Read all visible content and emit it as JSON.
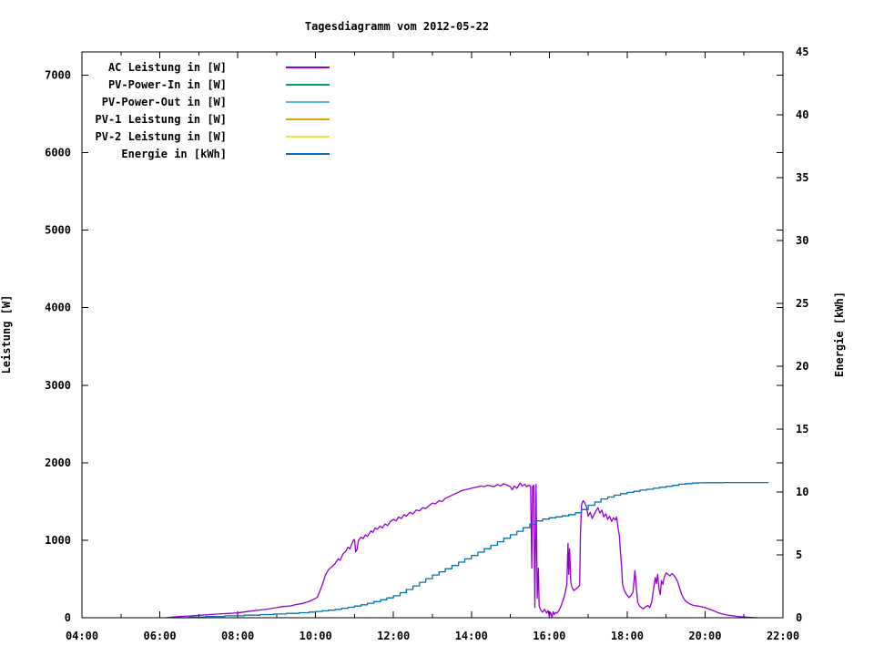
{
  "chart_data": {
    "type": "line",
    "title": "Tagesdiagramm vom 2012-05-22",
    "grid": false,
    "legend_position": "top-left",
    "x_axis": {
      "range": [
        4,
        22
      ],
      "tick_values": [
        4,
        6,
        8,
        10,
        12,
        14,
        16,
        18,
        20,
        22
      ],
      "tick_labels": [
        "04:00",
        "06:00",
        "08:00",
        "10:00",
        "12:00",
        "14:00",
        "16:00",
        "18:00",
        "20:00",
        "22:00"
      ],
      "minor_step": 1
    },
    "y_left": {
      "label": "Leistung [W]",
      "range": [
        0,
        7300
      ],
      "tick_values": [
        0,
        1000,
        2000,
        3000,
        4000,
        5000,
        6000,
        7000
      ],
      "tick_labels": [
        "0",
        "1000",
        "2000",
        "3000",
        "4000",
        "5000",
        "6000",
        "7000"
      ]
    },
    "y_right": {
      "label": "Energie [kWh]",
      "range": [
        0,
        45
      ],
      "tick_values": [
        0,
        5,
        10,
        15,
        20,
        25,
        30,
        35,
        40,
        45
      ],
      "tick_labels": [
        "0",
        "5",
        "10",
        "15",
        "20",
        "25",
        "30",
        "35",
        "40",
        "45"
      ]
    },
    "series": [
      {
        "name": "AC Leistung in [W]",
        "color": "#9400d3",
        "axis": "left",
        "step": false,
        "points": [
          [
            6.17,
            0
          ],
          [
            6.33,
            8
          ],
          [
            6.5,
            15
          ],
          [
            6.75,
            22
          ],
          [
            7.0,
            32
          ],
          [
            7.25,
            40
          ],
          [
            7.5,
            48
          ],
          [
            7.75,
            55
          ],
          [
            8.0,
            62
          ],
          [
            8.25,
            80
          ],
          [
            8.5,
            95
          ],
          [
            8.75,
            110
          ],
          [
            9.0,
            130
          ],
          [
            9.17,
            145
          ],
          [
            9.33,
            150
          ],
          [
            9.5,
            170
          ],
          [
            9.67,
            185
          ],
          [
            9.83,
            210
          ],
          [
            9.92,
            230
          ],
          [
            10.0,
            250
          ],
          [
            10.05,
            270
          ],
          [
            10.1,
            330
          ],
          [
            10.17,
            420
          ],
          [
            10.25,
            550
          ],
          [
            10.33,
            620
          ],
          [
            10.42,
            660
          ],
          [
            10.5,
            700
          ],
          [
            10.58,
            760
          ],
          [
            10.63,
            740
          ],
          [
            10.7,
            820
          ],
          [
            10.78,
            860
          ],
          [
            10.83,
            910
          ],
          [
            10.88,
            890
          ],
          [
            10.93,
            950
          ],
          [
            10.97,
            1000
          ],
          [
            11.0,
            1010
          ],
          [
            11.03,
            850
          ],
          [
            11.07,
            890
          ],
          [
            11.1,
            1000
          ],
          [
            11.17,
            1040
          ],
          [
            11.22,
            1020
          ],
          [
            11.28,
            1070
          ],
          [
            11.33,
            1050
          ],
          [
            11.42,
            1120
          ],
          [
            11.47,
            1100
          ],
          [
            11.53,
            1160
          ],
          [
            11.58,
            1140
          ],
          [
            11.65,
            1180
          ],
          [
            11.72,
            1160
          ],
          [
            11.78,
            1210
          ],
          [
            11.85,
            1190
          ],
          [
            11.92,
            1240
          ],
          [
            12.0,
            1270
          ],
          [
            12.07,
            1250
          ],
          [
            12.13,
            1300
          ],
          [
            12.2,
            1280
          ],
          [
            12.27,
            1330
          ],
          [
            12.33,
            1310
          ],
          [
            12.42,
            1360
          ],
          [
            12.5,
            1340
          ],
          [
            12.58,
            1390
          ],
          [
            12.67,
            1380
          ],
          [
            12.75,
            1420
          ],
          [
            12.83,
            1410
          ],
          [
            12.92,
            1450
          ],
          [
            13.0,
            1480
          ],
          [
            13.08,
            1470
          ],
          [
            13.17,
            1510
          ],
          [
            13.25,
            1500
          ],
          [
            13.33,
            1540
          ],
          [
            13.42,
            1560
          ],
          [
            13.5,
            1580
          ],
          [
            13.58,
            1600
          ],
          [
            13.67,
            1620
          ],
          [
            13.75,
            1640
          ],
          [
            13.83,
            1650
          ],
          [
            13.92,
            1660
          ],
          [
            14.0,
            1670
          ],
          [
            14.08,
            1680
          ],
          [
            14.17,
            1690
          ],
          [
            14.25,
            1700
          ],
          [
            14.33,
            1690
          ],
          [
            14.42,
            1710
          ],
          [
            14.5,
            1700
          ],
          [
            14.58,
            1690
          ],
          [
            14.67,
            1720
          ],
          [
            14.75,
            1700
          ],
          [
            14.83,
            1730
          ],
          [
            14.92,
            1710
          ],
          [
            15.0,
            1690
          ],
          [
            15.05,
            1650
          ],
          [
            15.1,
            1700
          ],
          [
            15.17,
            1670
          ],
          [
            15.25,
            1740
          ],
          [
            15.3,
            1700
          ],
          [
            15.37,
            1720
          ],
          [
            15.42,
            1690
          ],
          [
            15.47,
            1710
          ],
          [
            15.52,
            1700
          ],
          [
            15.55,
            640
          ],
          [
            15.57,
            1690
          ],
          [
            15.6,
            1710
          ],
          [
            15.63,
            130
          ],
          [
            15.66,
            1720
          ],
          [
            15.69,
            250
          ],
          [
            15.72,
            640
          ],
          [
            15.74,
            150
          ],
          [
            15.78,
            100
          ],
          [
            15.83,
            70
          ],
          [
            15.88,
            110
          ],
          [
            15.93,
            60
          ],
          [
            15.97,
            90
          ],
          [
            16.0,
            15
          ],
          [
            16.03,
            70
          ],
          [
            16.07,
            5
          ],
          [
            16.1,
            80
          ],
          [
            16.13,
            40
          ],
          [
            16.17,
            70
          ],
          [
            16.2,
            60
          ],
          [
            16.25,
            95
          ],
          [
            16.3,
            150
          ],
          [
            16.35,
            220
          ],
          [
            16.4,
            300
          ],
          [
            16.45,
            430
          ],
          [
            16.48,
            960
          ],
          [
            16.5,
            560
          ],
          [
            16.52,
            890
          ],
          [
            16.55,
            470
          ],
          [
            16.58,
            400
          ],
          [
            16.63,
            350
          ],
          [
            16.68,
            370
          ],
          [
            16.73,
            390
          ],
          [
            16.78,
            420
          ],
          [
            16.8,
            1100
          ],
          [
            16.83,
            1460
          ],
          [
            16.87,
            1510
          ],
          [
            16.9,
            1490
          ],
          [
            16.95,
            1440
          ],
          [
            17.0,
            1310
          ],
          [
            17.05,
            1360
          ],
          [
            17.1,
            1280
          ],
          [
            17.15,
            1330
          ],
          [
            17.2,
            1380
          ],
          [
            17.25,
            1420
          ],
          [
            17.3,
            1350
          ],
          [
            17.35,
            1390
          ],
          [
            17.4,
            1300
          ],
          [
            17.45,
            1340
          ],
          [
            17.5,
            1270
          ],
          [
            17.55,
            1310
          ],
          [
            17.6,
            1240
          ],
          [
            17.65,
            1290
          ],
          [
            17.7,
            1260
          ],
          [
            17.73,
            1300
          ],
          [
            17.77,
            1150
          ],
          [
            17.8,
            1060
          ],
          [
            17.83,
            830
          ],
          [
            17.86,
            640
          ],
          [
            17.88,
            430
          ],
          [
            17.92,
            360
          ],
          [
            17.97,
            310
          ],
          [
            18.0,
            290
          ],
          [
            18.05,
            260
          ],
          [
            18.1,
            290
          ],
          [
            18.15,
            330
          ],
          [
            18.2,
            610
          ],
          [
            18.23,
            430
          ],
          [
            18.27,
            200
          ],
          [
            18.32,
            150
          ],
          [
            18.37,
            130
          ],
          [
            18.42,
            115
          ],
          [
            18.47,
            140
          ],
          [
            18.53,
            160
          ],
          [
            18.58,
            130
          ],
          [
            18.63,
            200
          ],
          [
            18.68,
            380
          ],
          [
            18.72,
            520
          ],
          [
            18.75,
            440
          ],
          [
            18.78,
            560
          ],
          [
            18.82,
            360
          ],
          [
            18.85,
            300
          ],
          [
            18.88,
            480
          ],
          [
            18.92,
            430
          ],
          [
            18.95,
            520
          ],
          [
            19.0,
            580
          ],
          [
            19.05,
            560
          ],
          [
            19.1,
            540
          ],
          [
            19.15,
            570
          ],
          [
            19.2,
            545
          ],
          [
            19.25,
            510
          ],
          [
            19.3,
            460
          ],
          [
            19.35,
            380
          ],
          [
            19.4,
            300
          ],
          [
            19.45,
            250
          ],
          [
            19.5,
            215
          ],
          [
            19.58,
            185
          ],
          [
            19.67,
            165
          ],
          [
            19.75,
            155
          ],
          [
            19.83,
            150
          ],
          [
            19.92,
            140
          ],
          [
            20.0,
            130
          ],
          [
            20.08,
            115
          ],
          [
            20.17,
            100
          ],
          [
            20.25,
            85
          ],
          [
            20.33,
            65
          ],
          [
            20.42,
            52
          ],
          [
            20.5,
            42
          ],
          [
            20.58,
            34
          ],
          [
            20.67,
            27
          ],
          [
            20.75,
            22
          ],
          [
            20.83,
            17
          ],
          [
            20.92,
            13
          ],
          [
            21.0,
            10
          ],
          [
            21.08,
            7
          ],
          [
            21.17,
            4
          ],
          [
            21.25,
            2
          ],
          [
            21.33,
            0
          ]
        ]
      },
      {
        "name": "PV-Power-In in [W]",
        "color": "#009e73",
        "axis": "left",
        "step": false,
        "points": []
      },
      {
        "name": "PV-Power-Out in [W]",
        "color": "#56b4e9",
        "axis": "left",
        "step": false,
        "points": []
      },
      {
        "name": "PV-1 Leistung in [W]",
        "color": "#e69f00",
        "axis": "left",
        "step": false,
        "points": []
      },
      {
        "name": "PV-2 Leistung in [W]",
        "color": "#f0e442",
        "axis": "left",
        "step": false,
        "points": []
      },
      {
        "name": "Energie in [kWh]",
        "color": "#0072b2",
        "axis": "right",
        "step": true,
        "points": [
          [
            6.33,
            0
          ],
          [
            6.75,
            0.05
          ],
          [
            7.17,
            0.1
          ],
          [
            7.67,
            0.15
          ],
          [
            8.17,
            0.2
          ],
          [
            8.58,
            0.25
          ],
          [
            8.92,
            0.3
          ],
          [
            9.25,
            0.35
          ],
          [
            9.58,
            0.4
          ],
          [
            9.83,
            0.45
          ],
          [
            10.0,
            0.5
          ],
          [
            10.17,
            0.55
          ],
          [
            10.33,
            0.6
          ],
          [
            10.5,
            0.67
          ],
          [
            10.67,
            0.75
          ],
          [
            10.83,
            0.83
          ],
          [
            11.0,
            0.93
          ],
          [
            11.17,
            1.03
          ],
          [
            11.33,
            1.15
          ],
          [
            11.5,
            1.28
          ],
          [
            11.67,
            1.43
          ],
          [
            11.83,
            1.58
          ],
          [
            12.0,
            1.75
          ],
          [
            12.17,
            1.99
          ],
          [
            12.33,
            2.25
          ],
          [
            12.5,
            2.53
          ],
          [
            12.67,
            2.82
          ],
          [
            12.83,
            3.11
          ],
          [
            13.0,
            3.4
          ],
          [
            13.17,
            3.65
          ],
          [
            13.33,
            3.9
          ],
          [
            13.5,
            4.15
          ],
          [
            13.67,
            4.42
          ],
          [
            13.83,
            4.68
          ],
          [
            14.0,
            4.95
          ],
          [
            14.17,
            5.22
          ],
          [
            14.33,
            5.49
          ],
          [
            14.5,
            5.76
          ],
          [
            14.67,
            6.04
          ],
          [
            14.83,
            6.32
          ],
          [
            15.0,
            6.6
          ],
          [
            15.17,
            6.88
          ],
          [
            15.33,
            7.16
          ],
          [
            15.5,
            7.44
          ],
          [
            15.67,
            7.7
          ],
          [
            15.83,
            7.85
          ],
          [
            16.0,
            7.95
          ],
          [
            16.17,
            8.02
          ],
          [
            16.33,
            8.1
          ],
          [
            16.5,
            8.2
          ],
          [
            16.67,
            8.35
          ],
          [
            16.83,
            8.6
          ],
          [
            17.0,
            8.95
          ],
          [
            17.17,
            9.2
          ],
          [
            17.33,
            9.45
          ],
          [
            17.5,
            9.6
          ],
          [
            17.67,
            9.75
          ],
          [
            17.83,
            9.87
          ],
          [
            18.0,
            9.97
          ],
          [
            18.17,
            10.06
          ],
          [
            18.33,
            10.15
          ],
          [
            18.5,
            10.22
          ],
          [
            18.67,
            10.3
          ],
          [
            18.83,
            10.38
          ],
          [
            19.0,
            10.45
          ],
          [
            19.17,
            10.53
          ],
          [
            19.33,
            10.62
          ],
          [
            19.5,
            10.67
          ],
          [
            19.67,
            10.71
          ],
          [
            19.83,
            10.73
          ],
          [
            20.0,
            10.74
          ],
          [
            20.5,
            10.75
          ],
          [
            21.0,
            10.75
          ],
          [
            21.62,
            10.75
          ]
        ]
      }
    ]
  }
}
